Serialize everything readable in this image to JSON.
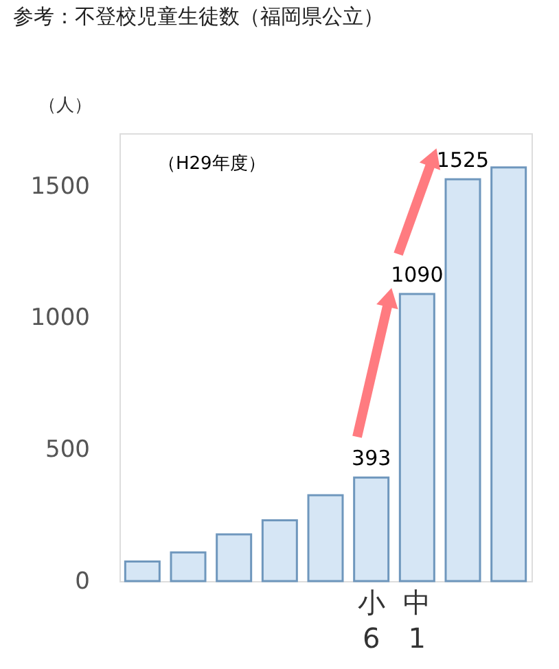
{
  "chart_data": {
    "type": "bar",
    "title": "参考：不登校児童生徒数（福岡県公立）",
    "ylabel": "（人）",
    "annotations": [
      "（H29年度）"
    ],
    "categories": [
      null,
      null,
      null,
      null,
      null,
      "小6",
      "中1",
      null,
      null
    ],
    "values": [
      74,
      109,
      177,
      231,
      326,
      393,
      1090,
      1525,
      1570
    ],
    "value_labels": [
      null,
      null,
      null,
      null,
      null,
      "393",
      "1090",
      "1525",
      null
    ],
    "color": "#d6e6f5",
    "ylim": [
      0,
      1700
    ],
    "yticks": [
      0,
      500,
      1000,
      1500
    ],
    "grid": false
  }
}
